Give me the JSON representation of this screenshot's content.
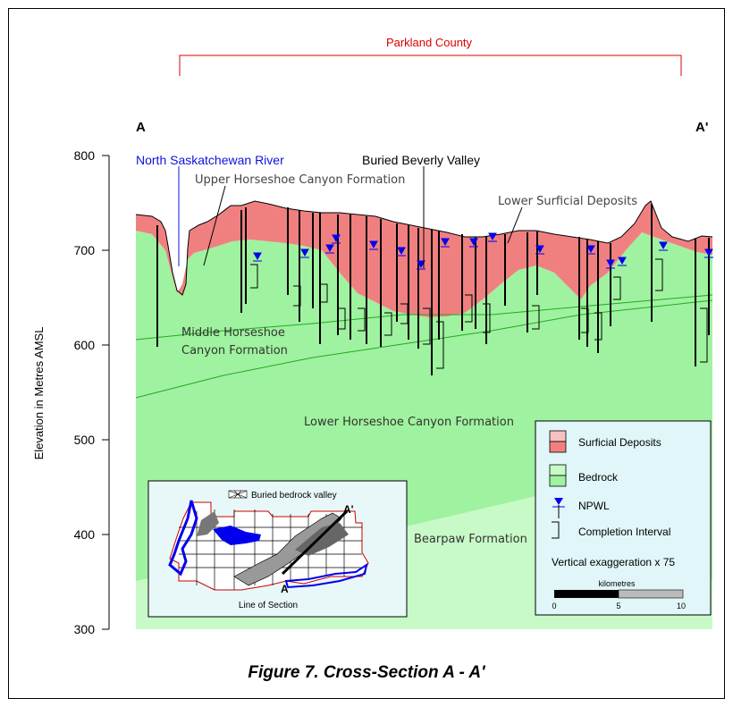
{
  "header": {
    "county": "Parkland County",
    "left_end": "A",
    "right_end": "A'"
  },
  "axis": {
    "ylabel": "Elevation in Metres AMSL",
    "ticks": [
      "800",
      "700",
      "600",
      "500",
      "400",
      "300"
    ]
  },
  "labels": {
    "river": "North Saskatchewan River",
    "valley": "Buried Beverly Valley",
    "upper_hsc": "Upper Horseshoe Canyon Formation",
    "lower_surficial": "Lower Surficial Deposits",
    "middle_hsc_1": "Middle Horseshoe",
    "middle_hsc_2": "Canyon Formation",
    "lower_hsc": "Lower Horseshoe Canyon Formation",
    "bearpaw": "Bearpaw Formation"
  },
  "legend": {
    "surficial": "Surficial Deposits",
    "bedrock": "Bedrock",
    "npwl": "NPWL",
    "completion": "Completion Interval",
    "exaggeration": "Vertical exaggeration x 75",
    "scale_title": "kilometres",
    "scale_ticks": [
      "0",
      "5",
      "10"
    ]
  },
  "inset": {
    "title": "Buried bedrock valley",
    "a_label": "A",
    "a_prime_label": "A'",
    "caption": "Line of Section"
  },
  "caption": "Figure 7. Cross-Section A - A'",
  "colors": {
    "surficial": "#f08080",
    "bedrock": "#9ff29f",
    "bearpaw": "#c8fac8",
    "river_label": "#1010e0",
    "county": "#dd0000"
  }
}
